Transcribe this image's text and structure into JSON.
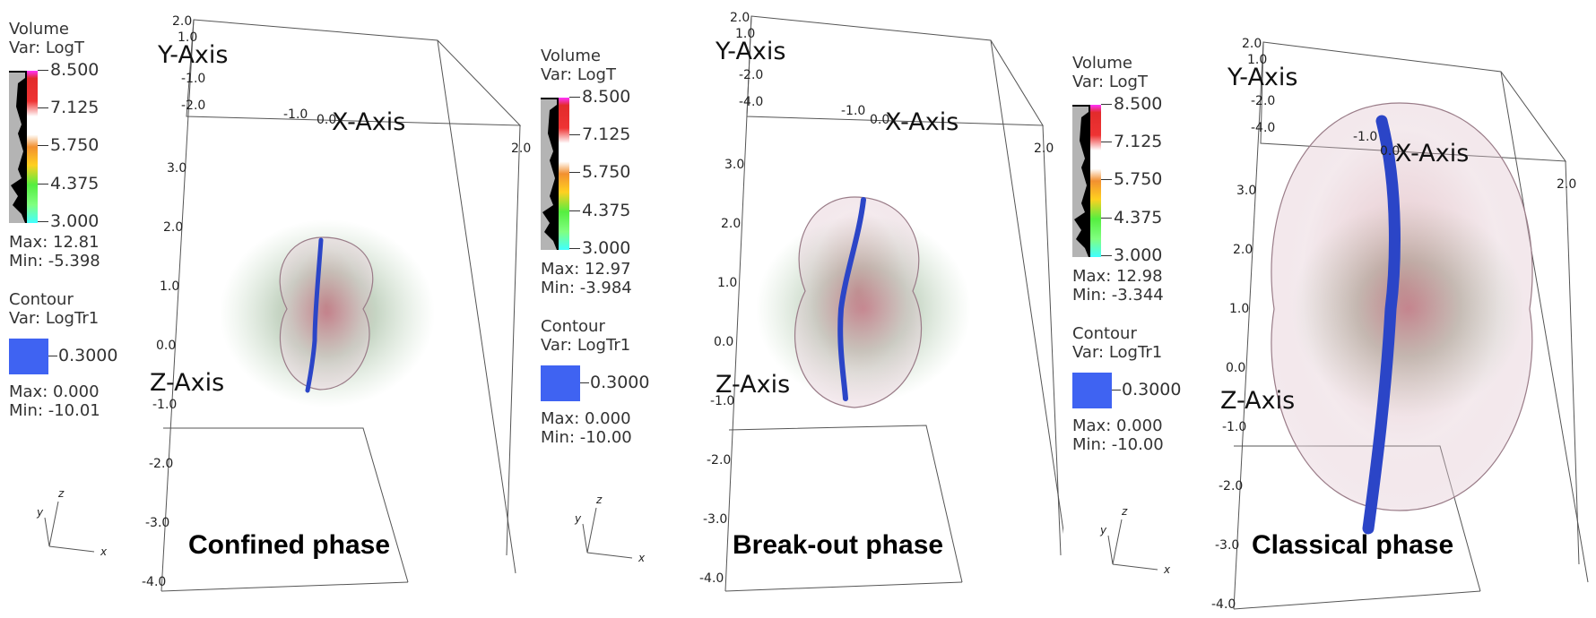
{
  "panels": [
    {
      "title": "Confined phase",
      "volume": {
        "title": "Volume",
        "var": "Var: LogT",
        "max": "Max:  12.81",
        "min": "Min: -5.398"
      },
      "contour": {
        "title": "Contour",
        "var": "Var: LogTr1",
        "value": "0.3000",
        "max": "Max:  0.000",
        "min": "Min: -10.01"
      },
      "ticks": [
        "8.500",
        "7.125",
        "5.750",
        "4.375",
        "3.000"
      ],
      "axes": {
        "x": "X-Axis",
        "y": "Y-Axis",
        "z": "Z-Axis"
      },
      "axis_ticks": {
        "top": [
          "2.0",
          "1.0",
          "-1.0",
          "-2.0",
          "-1.0",
          "0.0",
          "2.0"
        ],
        "left": [
          "3.0",
          "2.0",
          "1.0",
          "0.0",
          "-1.0",
          "-2.0",
          "-3.0",
          "-4.0"
        ]
      },
      "phase": "confined"
    },
    {
      "title": "Break-out phase",
      "volume": {
        "title": "Volume",
        "var": "Var: LogT",
        "max": "Max:  12.97",
        "min": "Min: -3.984"
      },
      "contour": {
        "title": "Contour",
        "var": "Var: LogTr1",
        "value": "0.3000",
        "max": "Max:  0.000",
        "min": "Min: -10.00"
      },
      "ticks": [
        "8.500",
        "7.125",
        "5.750",
        "4.375",
        "3.000"
      ],
      "axes": {
        "x": "X-Axis",
        "y": "Y-Axis",
        "z": "Z-Axis"
      },
      "axis_ticks": {
        "top": [
          "2.0",
          "1.0",
          "-2.0",
          "-4.0",
          "-1.0",
          "0.0",
          "2.0"
        ],
        "left": [
          "3.0",
          "2.0",
          "1.0",
          "0.0",
          "-1.0",
          "-2.0",
          "-3.0",
          "-4.0"
        ]
      },
      "phase": "breakout"
    },
    {
      "title": "Classical phase",
      "volume": {
        "title": "Volume",
        "var": "Var: LogT",
        "max": "Max:  12.98",
        "min": "Min: -3.344"
      },
      "contour": {
        "title": "Contour",
        "var": "Var: LogTr1",
        "value": "0.3000",
        "max": "Max:  0.000",
        "min": "Min: -10.00"
      },
      "ticks": [
        "8.500",
        "7.125",
        "5.750",
        "4.375",
        "3.000"
      ],
      "axes": {
        "x": "X-Axis",
        "y": "Y-Axis",
        "z": "Z-Axis"
      },
      "axis_ticks": {
        "top": [
          "2.0",
          "1.0",
          "-2.0",
          "-4.0",
          "-1.0",
          "0.0",
          "2.0"
        ],
        "left": [
          "3.0",
          "2.0",
          "1.0",
          "0.0",
          "-1.0",
          "-2.0",
          "-3.0",
          "-4.0"
        ]
      },
      "phase": "classical"
    }
  ],
  "triad": {
    "x": "x",
    "y": "y",
    "z": "z"
  },
  "colors": {
    "contour": "#3f63f2",
    "jet": "#2b45c7",
    "halo": "#6fae6a",
    "core": "#b03040"
  }
}
